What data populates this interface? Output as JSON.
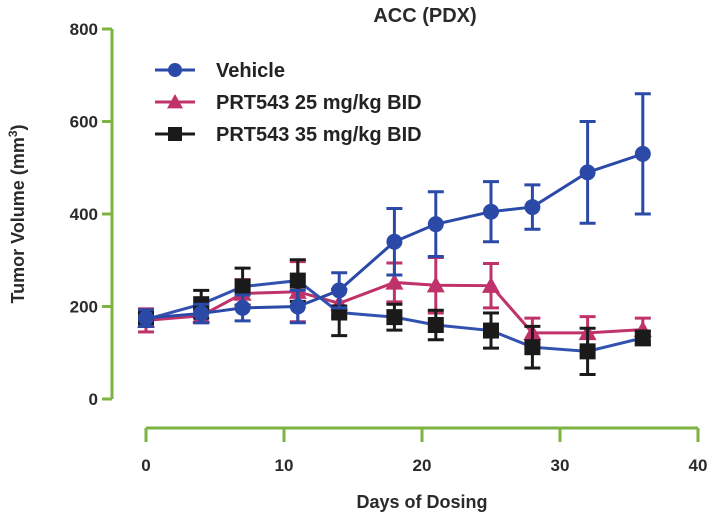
{
  "chart_data": {
    "type": "line",
    "title": "ACC (PDX)",
    "xlabel": "Days of Dosing",
    "ylabel": "Tumor Volume (mm",
    "ylabel_superscript": "3",
    "ylabel_suffix": ")",
    "xlim": [
      0,
      40
    ],
    "ylim": [
      0,
      800
    ],
    "xticks": [
      0,
      10,
      20,
      30,
      40
    ],
    "yticks": [
      0,
      200,
      400,
      600,
      800
    ],
    "grid": false,
    "legend_position": "top-left",
    "axis_color": "#7cb342",
    "x": [
      0,
      4,
      7,
      11,
      14,
      18,
      21,
      25,
      28,
      32,
      36
    ],
    "series": [
      {
        "name": "Vehicle",
        "color": "#2b4aa8",
        "marker": "circle",
        "values": [
          175,
          185,
          197,
          200,
          235,
          340,
          378,
          405,
          415,
          490,
          530
        ],
        "errors": [
          18,
          20,
          28,
          35,
          38,
          72,
          70,
          65,
          48,
          110,
          130
        ]
      },
      {
        "name": "PRT543 25 mg/kg BID",
        "color": "#c0336a",
        "marker": "triangle",
        "values": [
          170,
          180,
          228,
          232,
          207,
          252,
          246,
          245,
          143,
          143,
          150
        ],
        "errors": [
          25,
          15,
          30,
          65,
          30,
          42,
          60,
          48,
          32,
          35,
          25
        ]
      },
      {
        "name": "PRT543 35 mg/kg BID",
        "color": "#1a1a1a",
        "marker": "square",
        "values": [
          172,
          205,
          243,
          256,
          187,
          177,
          160,
          148,
          112,
          103,
          132
        ],
        "errors": [
          15,
          30,
          40,
          45,
          50,
          28,
          32,
          38,
          45,
          50,
          15
        ]
      }
    ]
  }
}
